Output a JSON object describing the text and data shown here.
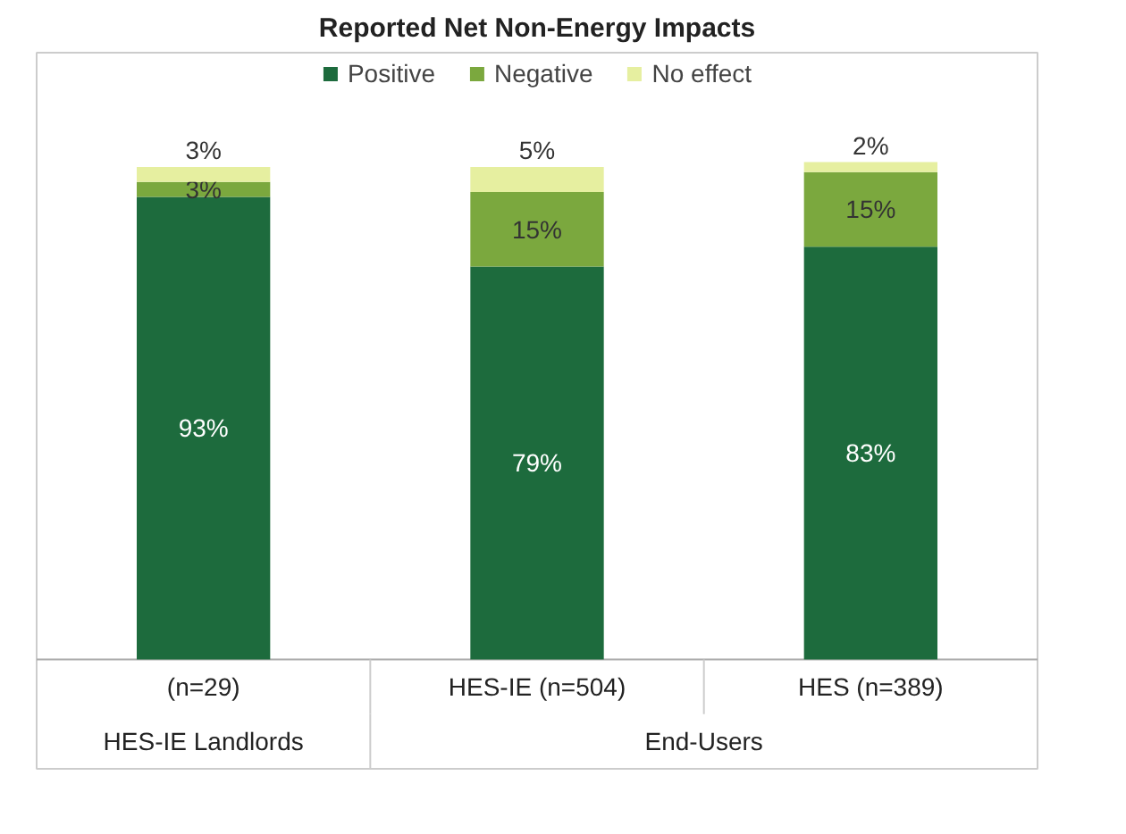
{
  "chart_data": {
    "type": "bar",
    "stacked": true,
    "title": "Reported Net Non-Energy Impacts",
    "categories": [
      "(n=29)",
      "HES-IE (n=504)",
      "HES (n=389)"
    ],
    "series": [
      {
        "name": "Positive",
        "color": "#1d6b3d",
        "values": [
          93,
          79,
          83
        ],
        "value_labels": [
          "93%",
          "79%",
          "83%"
        ]
      },
      {
        "name": "Negative",
        "color": "#7ba83e",
        "values": [
          3,
          15,
          15
        ],
        "value_labels": [
          "3%",
          "15%",
          "15%"
        ]
      },
      {
        "name": "No effect",
        "color": "#e6efa0",
        "values": [
          3,
          5,
          2
        ],
        "value_labels": [
          "3%",
          "5%",
          "2%"
        ]
      }
    ],
    "annotations": [
      "HES-IE Landlords",
      "End-Users"
    ],
    "legend": "top",
    "grid": false
  }
}
